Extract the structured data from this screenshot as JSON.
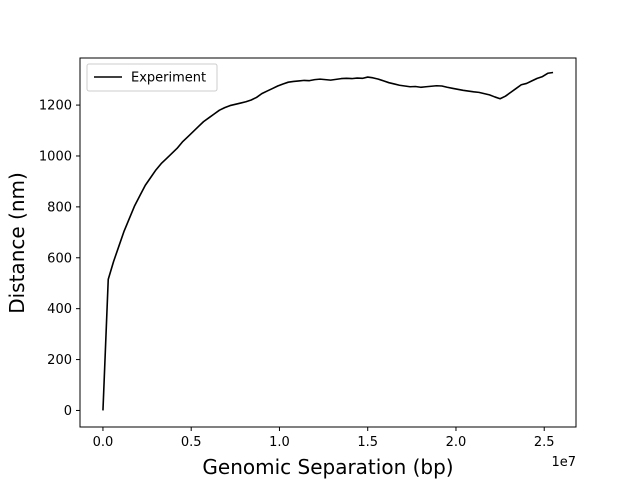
{
  "chart_data": {
    "type": "line",
    "xlabel": "Genomic Separation (bp)",
    "ylabel": "Distance (nm)",
    "x_offset_label": "1e7",
    "xlim": [
      -1300000,
      26800000
    ],
    "ylim": [
      -65,
      1385
    ],
    "x_ticks": [
      0,
      5000000,
      10000000,
      15000000,
      20000000,
      25000000
    ],
    "x_tick_labels": [
      "0.0",
      "0.5",
      "1.0",
      "1.5",
      "2.0",
      "2.5"
    ],
    "y_ticks": [
      0,
      200,
      400,
      600,
      800,
      1000,
      1200
    ],
    "y_tick_labels": [
      "0",
      "200",
      "400",
      "600",
      "800",
      "1000",
      "1200"
    ],
    "grid": false,
    "legend_position": "top-left",
    "series": [
      {
        "name": "Experiment",
        "color": "#000000",
        "x": [
          0,
          300000,
          600000,
          900000,
          1200000,
          1500000,
          1800000,
          2100000,
          2400000,
          2700000,
          3000000,
          3300000,
          3600000,
          3900000,
          4200000,
          4500000,
          4800000,
          5100000,
          5400000,
          5700000,
          6000000,
          6300000,
          6600000,
          6900000,
          7200000,
          7500000,
          7800000,
          8100000,
          8400000,
          8700000,
          9000000,
          9300000,
          9600000,
          9900000,
          10200000,
          10500000,
          10800000,
          11100000,
          11400000,
          11700000,
          12000000,
          12300000,
          12600000,
          12900000,
          13200000,
          13500000,
          13800000,
          14100000,
          14400000,
          14700000,
          15000000,
          15300000,
          15600000,
          15900000,
          16200000,
          16500000,
          16800000,
          17100000,
          17400000,
          17700000,
          18000000,
          18300000,
          18600000,
          18900000,
          19200000,
          19500000,
          19800000,
          20100000,
          20400000,
          20700000,
          21000000,
          21300000,
          21600000,
          21900000,
          22200000,
          22500000,
          22800000,
          23100000,
          23400000,
          23700000,
          24000000,
          24300000,
          24600000,
          24900000,
          25200000,
          25500000
        ],
        "y": [
          0,
          515,
          585,
          645,
          705,
          755,
          805,
          845,
          885,
          915,
          945,
          970,
          990,
          1010,
          1030,
          1055,
          1075,
          1095,
          1115,
          1135,
          1150,
          1165,
          1180,
          1190,
          1198,
          1203,
          1208,
          1213,
          1220,
          1230,
          1245,
          1255,
          1265,
          1275,
          1283,
          1290,
          1293,
          1295,
          1297,
          1296,
          1300,
          1302,
          1300,
          1298,
          1301,
          1304,
          1305,
          1304,
          1306,
          1305,
          1310,
          1307,
          1302,
          1295,
          1288,
          1283,
          1278,
          1275,
          1272,
          1273,
          1270,
          1272,
          1274,
          1276,
          1275,
          1270,
          1266,
          1262,
          1258,
          1255,
          1252,
          1250,
          1245,
          1240,
          1232,
          1225,
          1235,
          1250,
          1265,
          1280,
          1285,
          1295,
          1305,
          1312,
          1325,
          1328
        ]
      }
    ]
  }
}
